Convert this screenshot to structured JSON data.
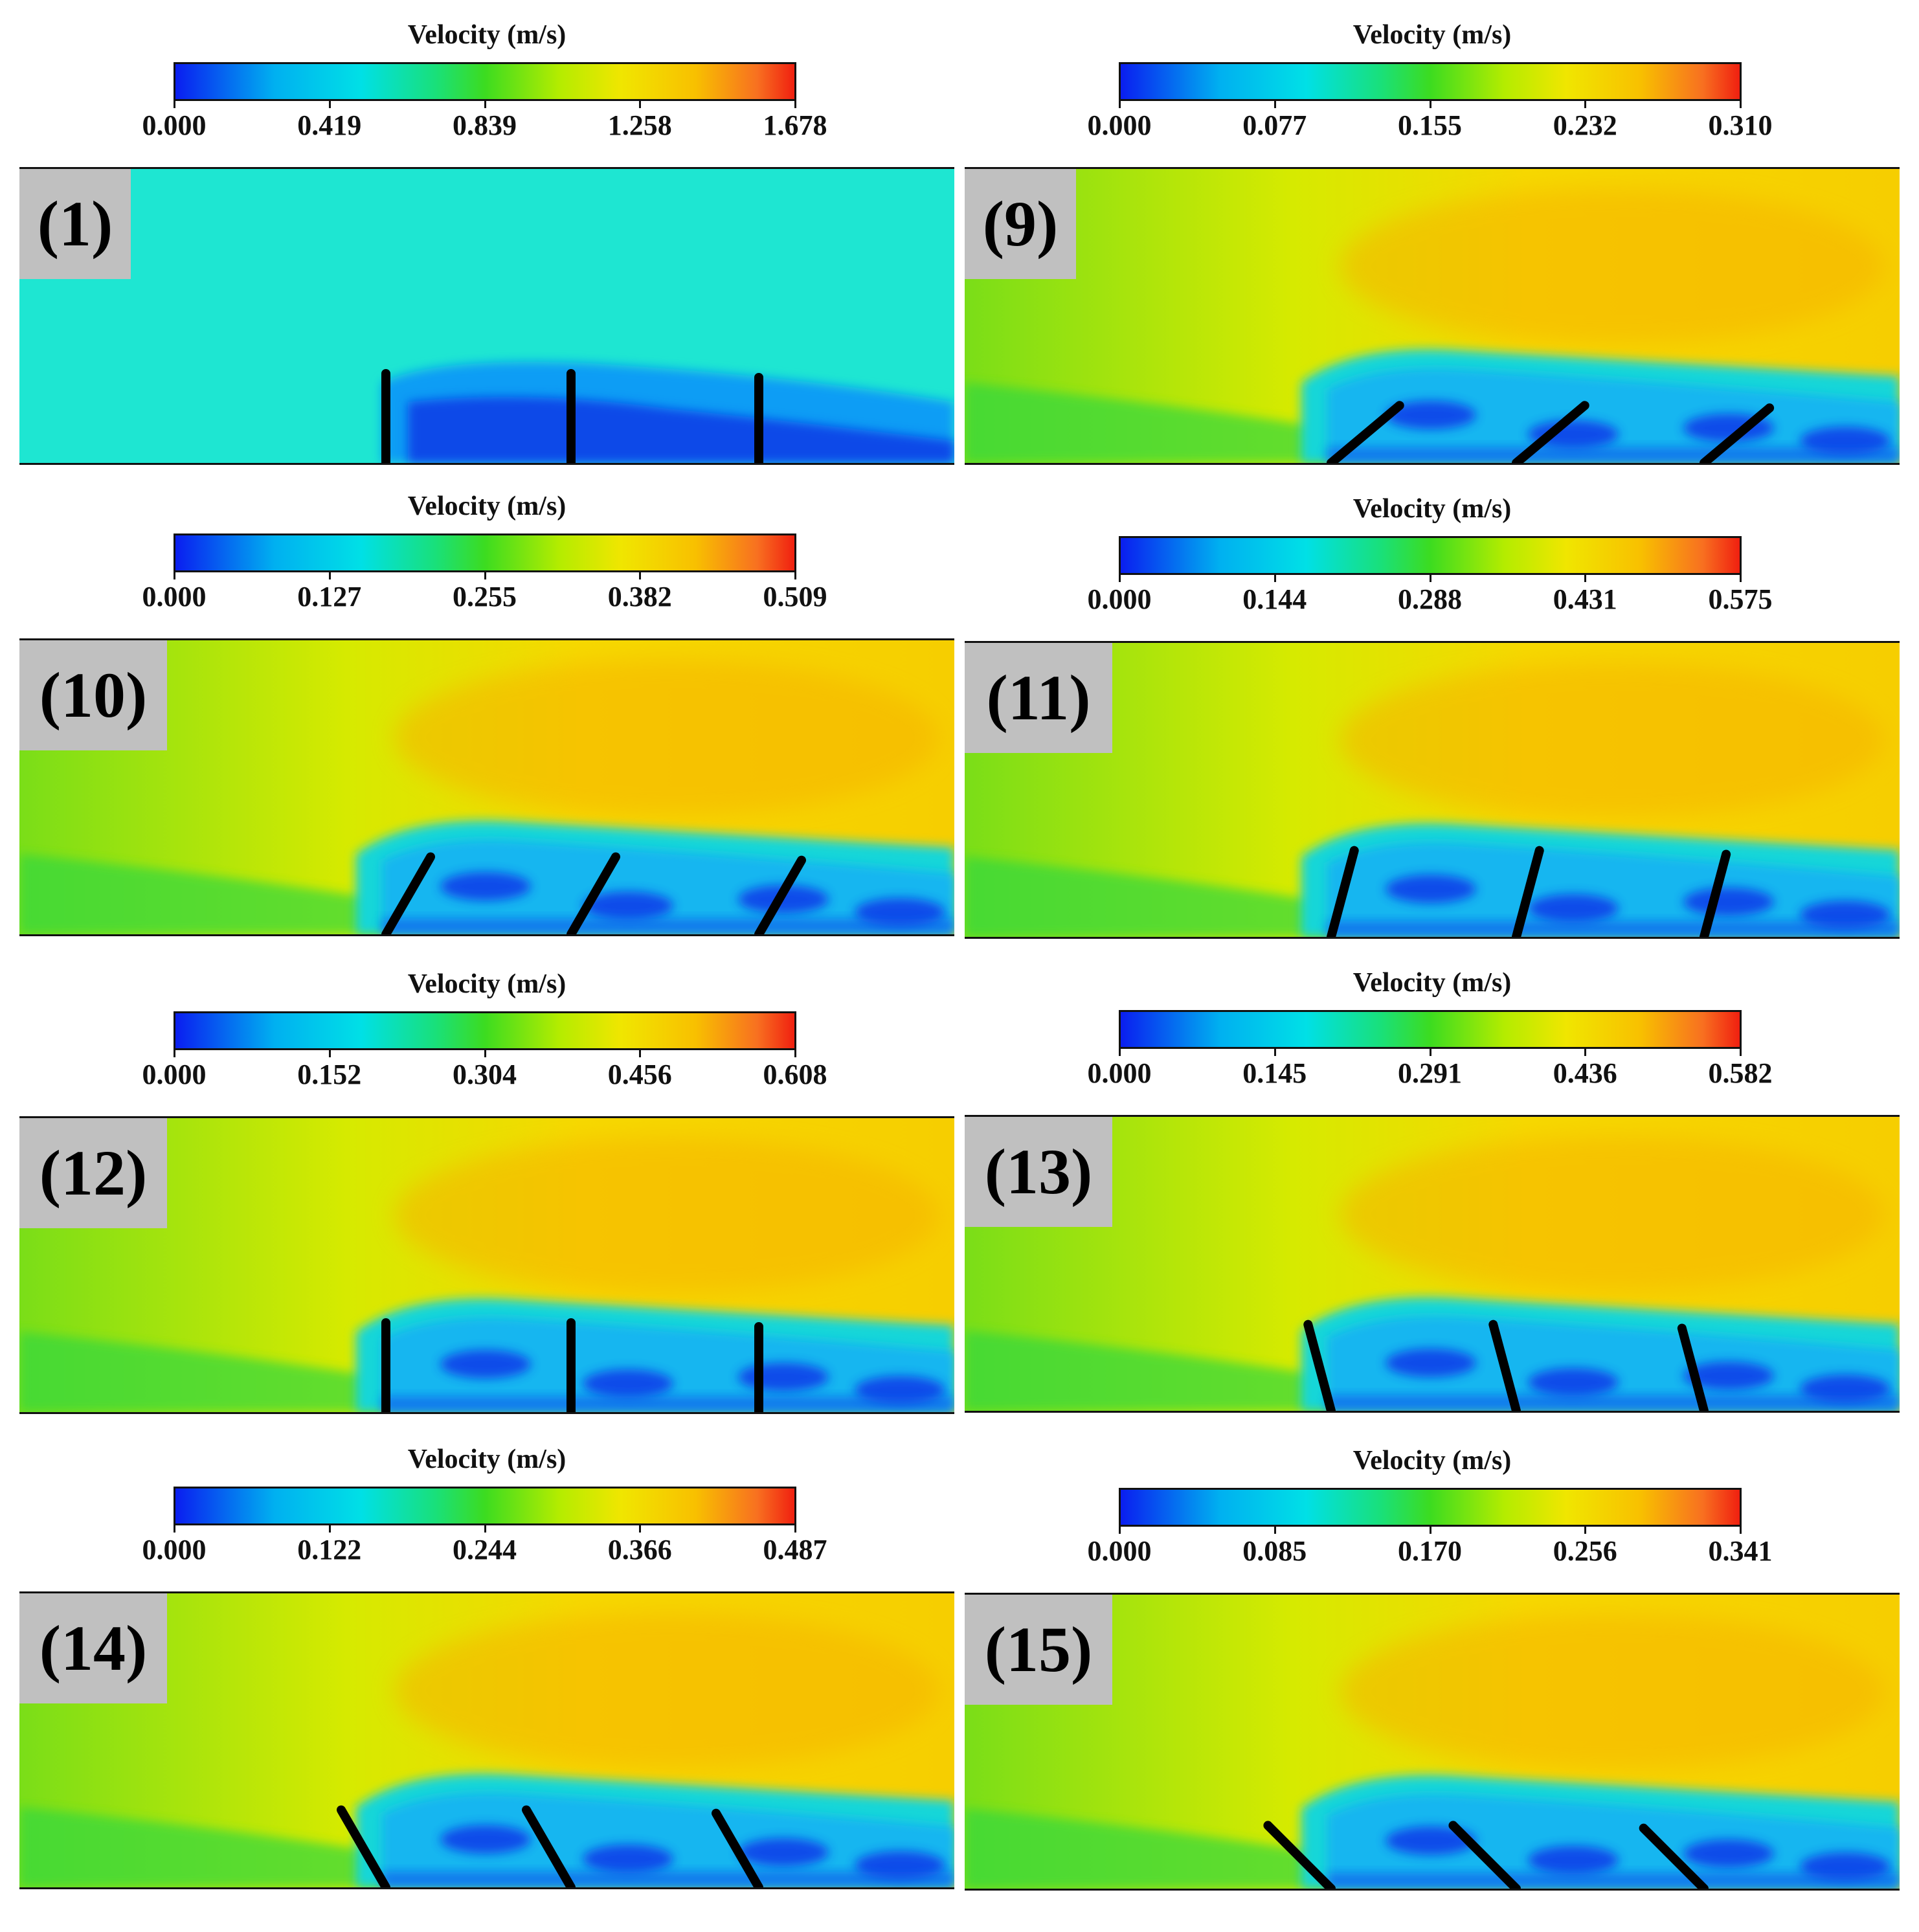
{
  "panels": [
    {
      "id": "p1",
      "label": "(1)",
      "colorbar": {
        "title": "Velocity (m/s)",
        "ticks": [
          "0.000",
          "0.419",
          "0.839",
          "1.258",
          "1.678"
        ]
      },
      "blade_angle_deg": 90,
      "field": "low"
    },
    {
      "id": "p9",
      "label": "(9)",
      "colorbar": {
        "title": "Velocity (m/s)",
        "ticks": [
          "0.000",
          "0.077",
          "0.155",
          "0.232",
          "0.310"
        ]
      },
      "blade_angle_deg": 40,
      "field": "high"
    },
    {
      "id": "p10",
      "label": "(10)",
      "colorbar": {
        "title": "Velocity (m/s)",
        "ticks": [
          "0.000",
          "0.127",
          "0.255",
          "0.382",
          "0.509"
        ]
      },
      "blade_angle_deg": 60,
      "field": "high"
    },
    {
      "id": "p11",
      "label": "(11)",
      "colorbar": {
        "title": "Velocity (m/s)",
        "ticks": [
          "0.000",
          "0.144",
          "0.288",
          "0.431",
          "0.575"
        ]
      },
      "blade_angle_deg": 75,
      "field": "high"
    },
    {
      "id": "p12",
      "label": "(12)",
      "colorbar": {
        "title": "Velocity (m/s)",
        "ticks": [
          "0.000",
          "0.152",
          "0.304",
          "0.456",
          "0.608"
        ]
      },
      "blade_angle_deg": 90,
      "field": "high"
    },
    {
      "id": "p13",
      "label": "(13)",
      "colorbar": {
        "title": "Velocity (m/s)",
        "ticks": [
          "0.000",
          "0.145",
          "0.291",
          "0.436",
          "0.582"
        ]
      },
      "blade_angle_deg": 105,
      "field": "high"
    },
    {
      "id": "p14",
      "label": "(14)",
      "colorbar": {
        "title": "Velocity (m/s)",
        "ticks": [
          "0.000",
          "0.122",
          "0.244",
          "0.366",
          "0.487"
        ]
      },
      "blade_angle_deg": 120,
      "field": "high"
    },
    {
      "id": "p15",
      "label": "(15)",
      "colorbar": {
        "title": "Velocity (m/s)",
        "ticks": [
          "0.000",
          "0.085",
          "0.170",
          "0.256",
          "0.341"
        ]
      },
      "blade_angle_deg": 135,
      "field": "high"
    }
  ],
  "colors": {
    "low_speed": "#0a1ef0",
    "mid_speed": "#3cdc20",
    "high_speed": "#f0e600",
    "peak_speed": "#f02010",
    "panel_label_bg": "#c0c0c0",
    "blade": "#000000"
  }
}
